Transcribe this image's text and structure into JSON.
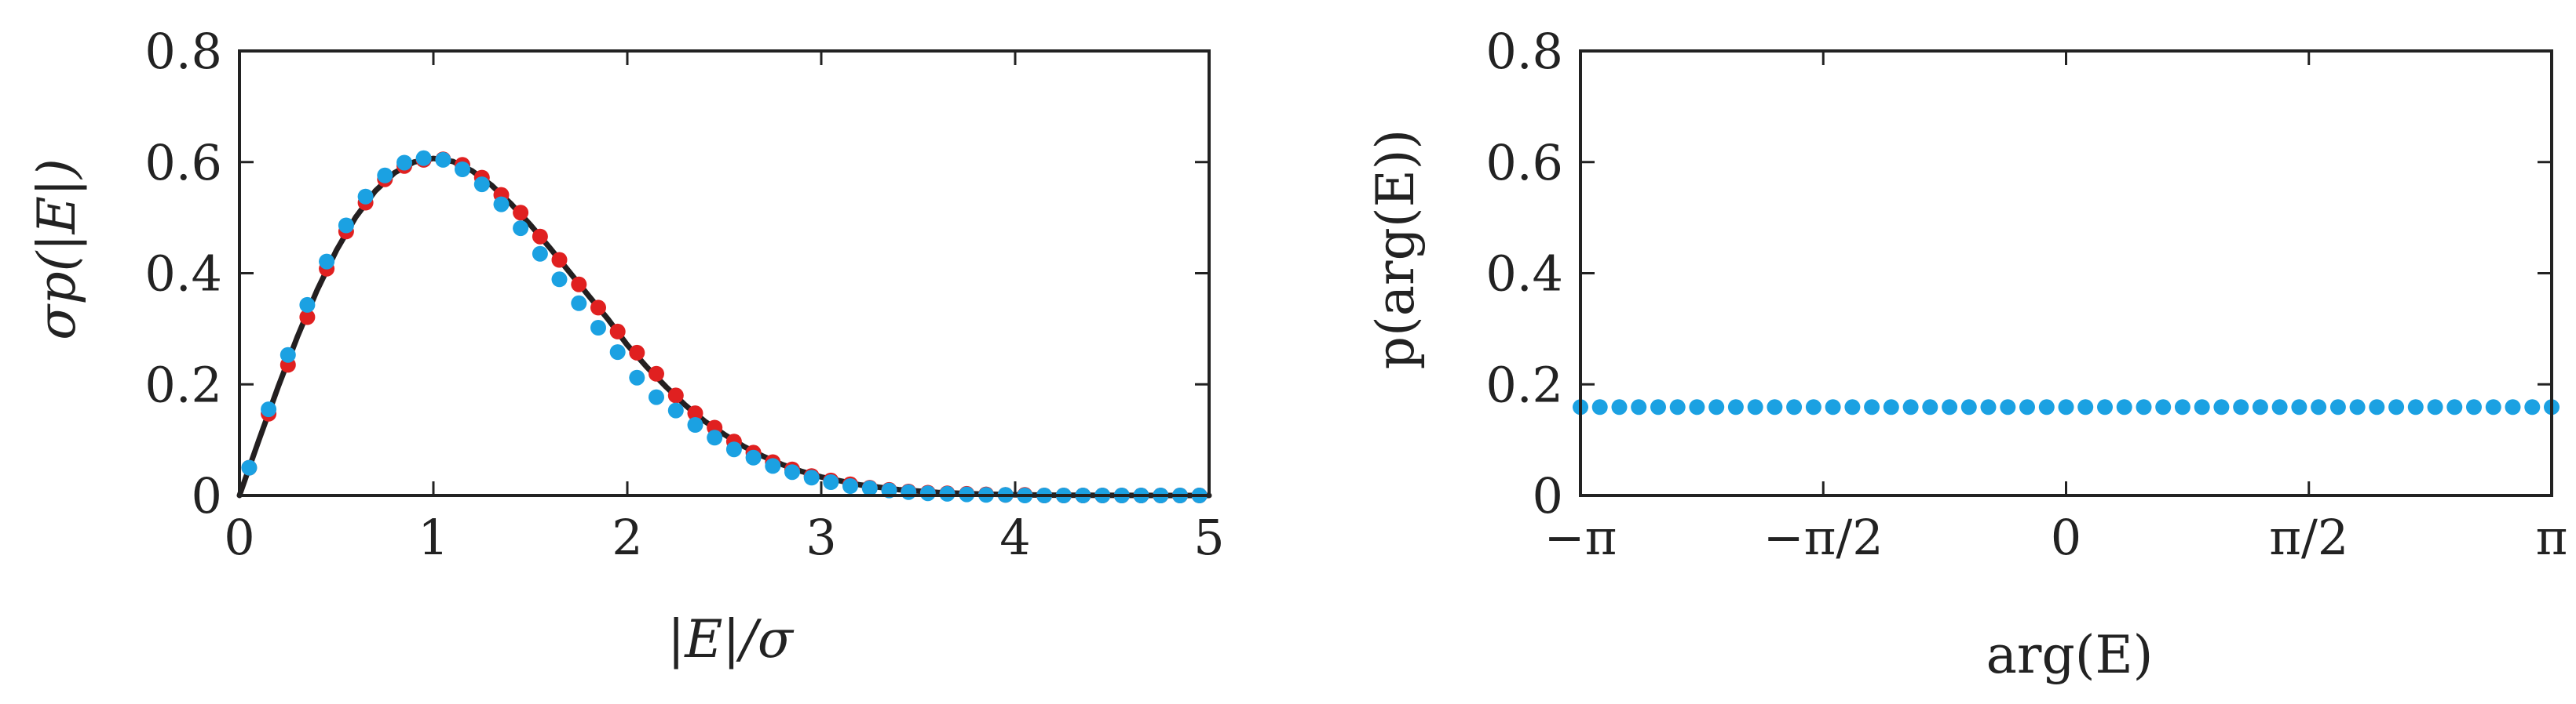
{
  "colors": {
    "theory_line": "#231f20",
    "red_points": "#e02020",
    "blue_points": "#1ba1e2",
    "axes": "#222222"
  },
  "chart_data": [
    {
      "type": "line",
      "xlabel": "|E|/σ",
      "ylabel": "σp(|E|)",
      "xlim": [
        0,
        5
      ],
      "ylim": [
        0,
        0.8
      ],
      "grid": false,
      "x_ticks": [
        {
          "value": 0,
          "label": "0"
        },
        {
          "value": 1,
          "label": "1"
        },
        {
          "value": 2,
          "label": "2"
        },
        {
          "value": 3,
          "label": "3"
        },
        {
          "value": 4,
          "label": "4"
        },
        {
          "value": 5,
          "label": "5"
        }
      ],
      "y_ticks": [
        {
          "value": 0,
          "label": "0"
        },
        {
          "value": 0.2,
          "label": "0.2"
        },
        {
          "value": 0.4,
          "label": "0.4"
        },
        {
          "value": 0.6,
          "label": "0.6"
        },
        {
          "value": 0.8,
          "label": "0.8"
        }
      ],
      "series": [
        {
          "kind": "line",
          "color": "#231f20",
          "x": [
            0,
            0.1,
            0.2,
            0.3,
            0.4,
            0.5,
            0.6,
            0.7,
            0.8,
            0.9,
            1.0,
            1.1,
            1.2,
            1.3,
            1.4,
            1.5,
            1.6,
            1.7,
            1.8,
            1.9,
            2.0,
            2.1,
            2.2,
            2.3,
            2.4,
            2.5,
            2.6,
            2.7,
            2.8,
            2.9,
            3.0,
            3.2,
            3.4,
            3.6,
            3.8,
            4.0,
            4.2,
            4.4,
            4.6,
            4.8,
            5.0
          ],
          "y": [
            0,
            0.0995,
            0.196,
            0.2867,
            0.3692,
            0.4412,
            0.5012,
            0.5479,
            0.5809,
            0.6001,
            0.6065,
            0.6012,
            0.5841,
            0.5583,
            0.525,
            0.487,
            0.4459,
            0.4028,
            0.3596,
            0.3175,
            0.2707,
            0.2313,
            0.1954,
            0.1623,
            0.1333,
            0.1098,
            0.0883,
            0.0705,
            0.0554,
            0.0432,
            0.0333,
            0.019,
            0.0105,
            0.0055,
            0.0028,
            0.0013,
            0.0006,
            0.0003,
            0.0001,
            0.0,
            0.0
          ]
        },
        {
          "kind": "scatter",
          "color": "#e02020",
          "x": [
            0.05,
            0.15,
            0.25,
            0.35,
            0.45,
            0.55,
            0.65,
            0.75,
            0.85,
            0.95,
            1.05,
            1.15,
            1.25,
            1.35,
            1.45,
            1.55,
            1.65,
            1.75,
            1.85,
            1.95,
            2.05,
            2.15,
            2.25,
            2.35,
            2.45,
            2.55,
            2.65,
            2.75,
            2.85,
            2.95,
            3.05,
            3.15,
            3.25,
            3.35,
            3.45,
            3.55,
            3.65,
            3.75,
            3.85,
            3.95,
            4.05,
            4.15,
            4.25,
            4.35,
            4.45,
            4.55,
            4.65,
            4.75,
            4.85,
            4.95
          ],
          "y": [
            0.05,
            0.147,
            0.235,
            0.321,
            0.408,
            0.475,
            0.527,
            0.569,
            0.593,
            0.604,
            0.605,
            0.595,
            0.572,
            0.541,
            0.509,
            0.466,
            0.424,
            0.38,
            0.338,
            0.295,
            0.257,
            0.219,
            0.18,
            0.148,
            0.122,
            0.097,
            0.077,
            0.06,
            0.047,
            0.035,
            0.027,
            0.02,
            0.014,
            0.01,
            0.007,
            0.005,
            0.004,
            0.003,
            0.002,
            0.001,
            0.001,
            0.0,
            0.0,
            0.0,
            0.0,
            0.0,
            0.0,
            0.0,
            0.0,
            0.0
          ]
        },
        {
          "kind": "scatter",
          "color": "#1ba1e2",
          "x": [
            0.05,
            0.15,
            0.25,
            0.35,
            0.45,
            0.55,
            0.65,
            0.75,
            0.85,
            0.95,
            1.05,
            1.15,
            1.25,
            1.35,
            1.45,
            1.55,
            1.65,
            1.75,
            1.85,
            1.95,
            2.05,
            2.15,
            2.25,
            2.35,
            2.45,
            2.55,
            2.65,
            2.75,
            2.85,
            2.95,
            3.05,
            3.15,
            3.25,
            3.35,
            3.45,
            3.55,
            3.65,
            3.75,
            3.85,
            3.95,
            4.05,
            4.15,
            4.25,
            4.35,
            4.45,
            4.55,
            4.65,
            4.75,
            4.85,
            4.95
          ],
          "y": [
            0.05,
            0.155,
            0.253,
            0.343,
            0.421,
            0.486,
            0.538,
            0.576,
            0.599,
            0.607,
            0.604,
            0.587,
            0.56,
            0.524,
            0.481,
            0.435,
            0.389,
            0.346,
            0.302,
            0.258,
            0.212,
            0.177,
            0.153,
            0.127,
            0.104,
            0.083,
            0.068,
            0.053,
            0.042,
            0.032,
            0.024,
            0.017,
            0.013,
            0.009,
            0.006,
            0.004,
            0.003,
            0.002,
            0.001,
            0.001,
            0.0,
            0.0,
            0.0,
            0.0,
            0.0,
            0.0,
            0.0,
            0.0,
            0.0,
            0.0
          ]
        }
      ]
    },
    {
      "type": "scatter",
      "xlabel": "arg(E)",
      "ylabel": "p(arg(E))",
      "xlim": [
        -3.14159,
        3.14159
      ],
      "ylim": [
        0,
        0.8
      ],
      "grid": false,
      "x_ticks": [
        {
          "value": -3.14159,
          "label": "−π"
        },
        {
          "value": -1.5708,
          "label": "−π/2"
        },
        {
          "value": 0,
          "label": "0"
        },
        {
          "value": 1.5708,
          "label": "π/2"
        },
        {
          "value": 3.14159,
          "label": "π"
        }
      ],
      "y_ticks": [
        {
          "value": 0,
          "label": "0"
        },
        {
          "value": 0.2,
          "label": "0.2"
        },
        {
          "value": 0.4,
          "label": "0.4"
        },
        {
          "value": 0.6,
          "label": "0.6"
        },
        {
          "value": 0.8,
          "label": "0.8"
        }
      ],
      "series": [
        {
          "kind": "scatter",
          "color": "#1ba1e2",
          "x": [
            -3.14159,
            -3.01593,
            -2.89027,
            -2.7646,
            -2.63894,
            -2.51327,
            -2.38761,
            -2.26195,
            -2.13628,
            -2.01062,
            -1.88496,
            -1.75929,
            -1.63363,
            -1.50796,
            -1.3823,
            -1.25664,
            -1.13097,
            -1.00531,
            -0.87965,
            -0.75398,
            -0.62832,
            -0.50265,
            -0.37699,
            -0.25133,
            -0.12566,
            0.0,
            0.12566,
            0.25133,
            0.37699,
            0.50265,
            0.62832,
            0.75398,
            0.87965,
            1.00531,
            1.13097,
            1.25664,
            1.3823,
            1.50796,
            1.63363,
            1.75929,
            1.88496,
            2.01062,
            2.13628,
            2.26195,
            2.38761,
            2.51327,
            2.63894,
            2.7646,
            2.89027,
            3.01593,
            3.14159
          ],
          "y": [
            0.159,
            0.159,
            0.159,
            0.159,
            0.159,
            0.159,
            0.159,
            0.159,
            0.159,
            0.159,
            0.159,
            0.159,
            0.159,
            0.159,
            0.159,
            0.159,
            0.159,
            0.159,
            0.159,
            0.159,
            0.159,
            0.159,
            0.159,
            0.159,
            0.159,
            0.159,
            0.159,
            0.159,
            0.159,
            0.159,
            0.159,
            0.159,
            0.159,
            0.159,
            0.159,
            0.159,
            0.159,
            0.159,
            0.159,
            0.159,
            0.159,
            0.159,
            0.159,
            0.159,
            0.159,
            0.159,
            0.159,
            0.159,
            0.159,
            0.159,
            0.159
          ]
        }
      ]
    }
  ]
}
